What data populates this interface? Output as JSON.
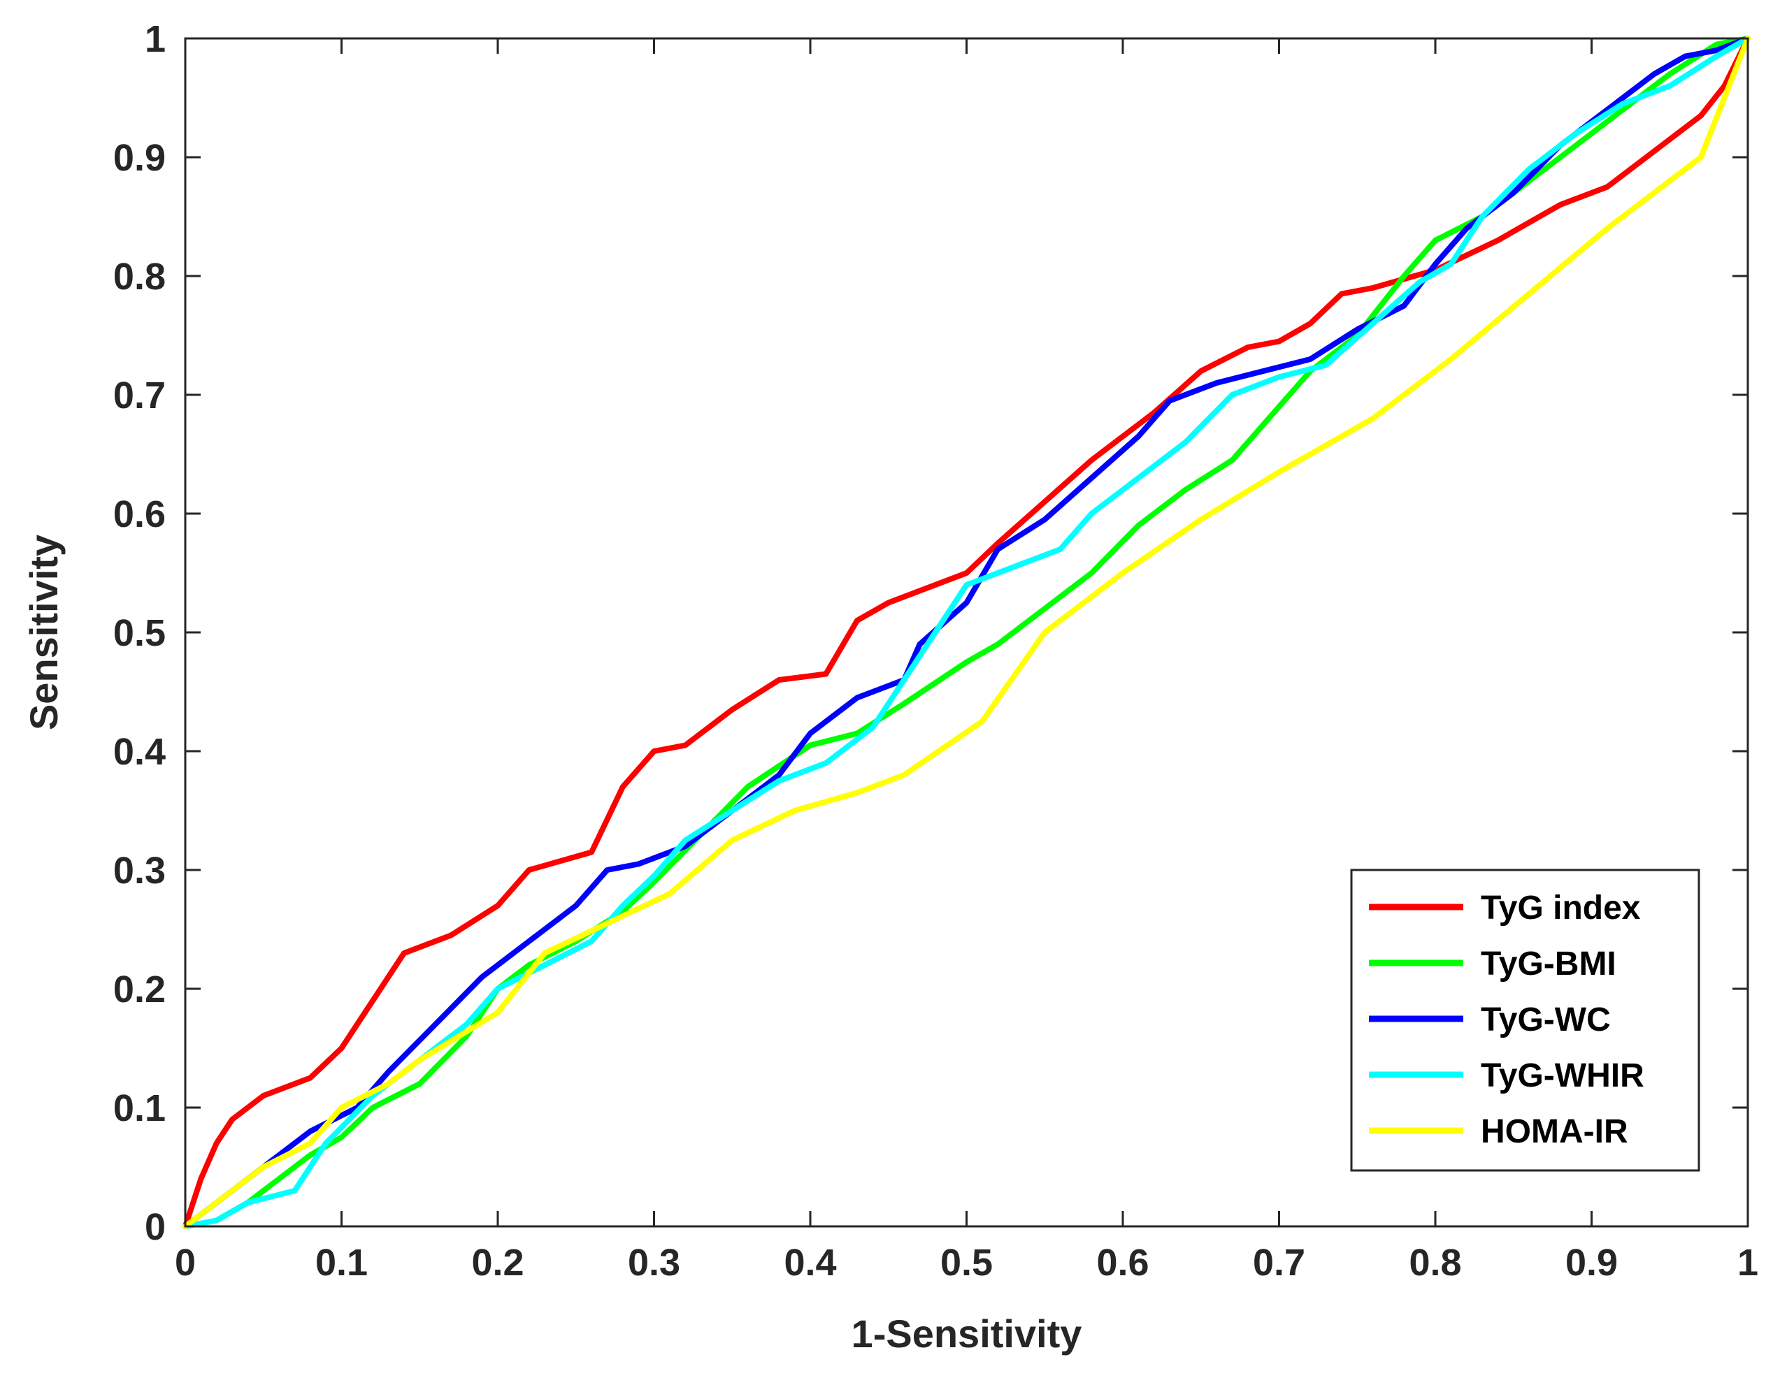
{
  "chart_data": {
    "type": "line",
    "title": "",
    "xlabel": "1-Sensitivity",
    "ylabel": "Sensitivity",
    "xlim": [
      0,
      1
    ],
    "ylim": [
      0,
      1
    ],
    "xticks": [
      "0",
      "0.1",
      "0.2",
      "0.3",
      "0.4",
      "0.5",
      "0.6",
      "0.7",
      "0.8",
      "0.9",
      "1"
    ],
    "yticks": [
      "0",
      "0.1",
      "0.2",
      "0.3",
      "0.4",
      "0.5",
      "0.6",
      "0.7",
      "0.8",
      "0.9",
      "1"
    ],
    "grid": false,
    "legend_position": "bottom-right",
    "series": [
      {
        "name": "TyG index",
        "color": "#ff0000",
        "points": [
          [
            0,
            0
          ],
          [
            0.01,
            0.04
          ],
          [
            0.02,
            0.07
          ],
          [
            0.03,
            0.09
          ],
          [
            0.05,
            0.11
          ],
          [
            0.08,
            0.125
          ],
          [
            0.1,
            0.15
          ],
          [
            0.12,
            0.19
          ],
          [
            0.14,
            0.23
          ],
          [
            0.17,
            0.245
          ],
          [
            0.2,
            0.27
          ],
          [
            0.22,
            0.3
          ],
          [
            0.26,
            0.315
          ],
          [
            0.28,
            0.37
          ],
          [
            0.3,
            0.4
          ],
          [
            0.32,
            0.405
          ],
          [
            0.35,
            0.435
          ],
          [
            0.38,
            0.46
          ],
          [
            0.41,
            0.465
          ],
          [
            0.43,
            0.51
          ],
          [
            0.45,
            0.525
          ],
          [
            0.48,
            0.54
          ],
          [
            0.5,
            0.55
          ],
          [
            0.52,
            0.575
          ],
          [
            0.55,
            0.61
          ],
          [
            0.58,
            0.645
          ],
          [
            0.6,
            0.665
          ],
          [
            0.62,
            0.685
          ],
          [
            0.65,
            0.72
          ],
          [
            0.68,
            0.74
          ],
          [
            0.7,
            0.745
          ],
          [
            0.72,
            0.76
          ],
          [
            0.74,
            0.785
          ],
          [
            0.76,
            0.79
          ],
          [
            0.8,
            0.805
          ],
          [
            0.84,
            0.83
          ],
          [
            0.88,
            0.86
          ],
          [
            0.91,
            0.875
          ],
          [
            0.94,
            0.905
          ],
          [
            0.97,
            0.935
          ],
          [
            0.985,
            0.96
          ],
          [
            1,
            1
          ]
        ]
      },
      {
        "name": "TyG-BMI",
        "color": "#00ff00",
        "points": [
          [
            0,
            0
          ],
          [
            0.02,
            0.005
          ],
          [
            0.04,
            0.02
          ],
          [
            0.06,
            0.04
          ],
          [
            0.08,
            0.06
          ],
          [
            0.1,
            0.075
          ],
          [
            0.12,
            0.1
          ],
          [
            0.15,
            0.12
          ],
          [
            0.18,
            0.16
          ],
          [
            0.2,
            0.2
          ],
          [
            0.22,
            0.22
          ],
          [
            0.25,
            0.24
          ],
          [
            0.28,
            0.265
          ],
          [
            0.3,
            0.29
          ],
          [
            0.33,
            0.33
          ],
          [
            0.36,
            0.37
          ],
          [
            0.4,
            0.405
          ],
          [
            0.43,
            0.415
          ],
          [
            0.46,
            0.44
          ],
          [
            0.5,
            0.475
          ],
          [
            0.52,
            0.49
          ],
          [
            0.55,
            0.52
          ],
          [
            0.58,
            0.55
          ],
          [
            0.61,
            0.59
          ],
          [
            0.64,
            0.62
          ],
          [
            0.67,
            0.645
          ],
          [
            0.7,
            0.69
          ],
          [
            0.72,
            0.72
          ],
          [
            0.75,
            0.75
          ],
          [
            0.78,
            0.8
          ],
          [
            0.8,
            0.83
          ],
          [
            0.83,
            0.85
          ],
          [
            0.86,
            0.88
          ],
          [
            0.89,
            0.91
          ],
          [
            0.92,
            0.94
          ],
          [
            0.95,
            0.97
          ],
          [
            0.98,
            0.995
          ],
          [
            1,
            1
          ]
        ]
      },
      {
        "name": "TyG-WC",
        "color": "#0000ff",
        "points": [
          [
            0,
            0
          ],
          [
            0.03,
            0.03
          ],
          [
            0.06,
            0.06
          ],
          [
            0.08,
            0.08
          ],
          [
            0.11,
            0.1
          ],
          [
            0.13,
            0.13
          ],
          [
            0.16,
            0.17
          ],
          [
            0.19,
            0.21
          ],
          [
            0.22,
            0.24
          ],
          [
            0.25,
            0.27
          ],
          [
            0.27,
            0.3
          ],
          [
            0.29,
            0.305
          ],
          [
            0.32,
            0.32
          ],
          [
            0.35,
            0.35
          ],
          [
            0.38,
            0.38
          ],
          [
            0.4,
            0.415
          ],
          [
            0.43,
            0.445
          ],
          [
            0.46,
            0.46
          ],
          [
            0.47,
            0.49
          ],
          [
            0.5,
            0.525
          ],
          [
            0.52,
            0.57
          ],
          [
            0.55,
            0.595
          ],
          [
            0.58,
            0.63
          ],
          [
            0.61,
            0.665
          ],
          [
            0.63,
            0.695
          ],
          [
            0.66,
            0.71
          ],
          [
            0.69,
            0.72
          ],
          [
            0.72,
            0.73
          ],
          [
            0.75,
            0.755
          ],
          [
            0.78,
            0.775
          ],
          [
            0.8,
            0.81
          ],
          [
            0.82,
            0.84
          ],
          [
            0.85,
            0.87
          ],
          [
            0.88,
            0.91
          ],
          [
            0.91,
            0.94
          ],
          [
            0.94,
            0.97
          ],
          [
            0.96,
            0.985
          ],
          [
            0.98,
            0.99
          ],
          [
            1,
            1
          ]
        ]
      },
      {
        "name": "TyG-WHIR",
        "color": "#00ffff",
        "points": [
          [
            0,
            0
          ],
          [
            0.02,
            0.005
          ],
          [
            0.04,
            0.02
          ],
          [
            0.07,
            0.03
          ],
          [
            0.09,
            0.07
          ],
          [
            0.12,
            0.11
          ],
          [
            0.15,
            0.14
          ],
          [
            0.18,
            0.17
          ],
          [
            0.2,
            0.2
          ],
          [
            0.23,
            0.22
          ],
          [
            0.26,
            0.24
          ],
          [
            0.28,
            0.27
          ],
          [
            0.3,
            0.295
          ],
          [
            0.32,
            0.325
          ],
          [
            0.35,
            0.35
          ],
          [
            0.38,
            0.375
          ],
          [
            0.41,
            0.39
          ],
          [
            0.44,
            0.42
          ],
          [
            0.46,
            0.46
          ],
          [
            0.48,
            0.5
          ],
          [
            0.5,
            0.54
          ],
          [
            0.53,
            0.555
          ],
          [
            0.56,
            0.57
          ],
          [
            0.58,
            0.6
          ],
          [
            0.61,
            0.63
          ],
          [
            0.64,
            0.66
          ],
          [
            0.67,
            0.7
          ],
          [
            0.7,
            0.715
          ],
          [
            0.73,
            0.725
          ],
          [
            0.76,
            0.76
          ],
          [
            0.79,
            0.795
          ],
          [
            0.81,
            0.81
          ],
          [
            0.83,
            0.85
          ],
          [
            0.86,
            0.89
          ],
          [
            0.89,
            0.92
          ],
          [
            0.92,
            0.945
          ],
          [
            0.95,
            0.96
          ],
          [
            0.98,
            0.985
          ],
          [
            1,
            1
          ]
        ]
      },
      {
        "name": "HOMA-IR",
        "color": "#ffff00",
        "points": [
          [
            0,
            0
          ],
          [
            0.02,
            0.02
          ],
          [
            0.05,
            0.05
          ],
          [
            0.08,
            0.07
          ],
          [
            0.1,
            0.1
          ],
          [
            0.13,
            0.12
          ],
          [
            0.15,
            0.14
          ],
          [
            0.2,
            0.18
          ],
          [
            0.23,
            0.23
          ],
          [
            0.27,
            0.255
          ],
          [
            0.31,
            0.28
          ],
          [
            0.35,
            0.325
          ],
          [
            0.39,
            0.35
          ],
          [
            0.43,
            0.365
          ],
          [
            0.46,
            0.38
          ],
          [
            0.51,
            0.425
          ],
          [
            0.55,
            0.5
          ],
          [
            0.6,
            0.55
          ],
          [
            0.65,
            0.595
          ],
          [
            0.7,
            0.635
          ],
          [
            0.76,
            0.68
          ],
          [
            0.81,
            0.73
          ],
          [
            0.86,
            0.785
          ],
          [
            0.91,
            0.84
          ],
          [
            0.97,
            0.9
          ],
          [
            1,
            1
          ]
        ]
      }
    ]
  }
}
